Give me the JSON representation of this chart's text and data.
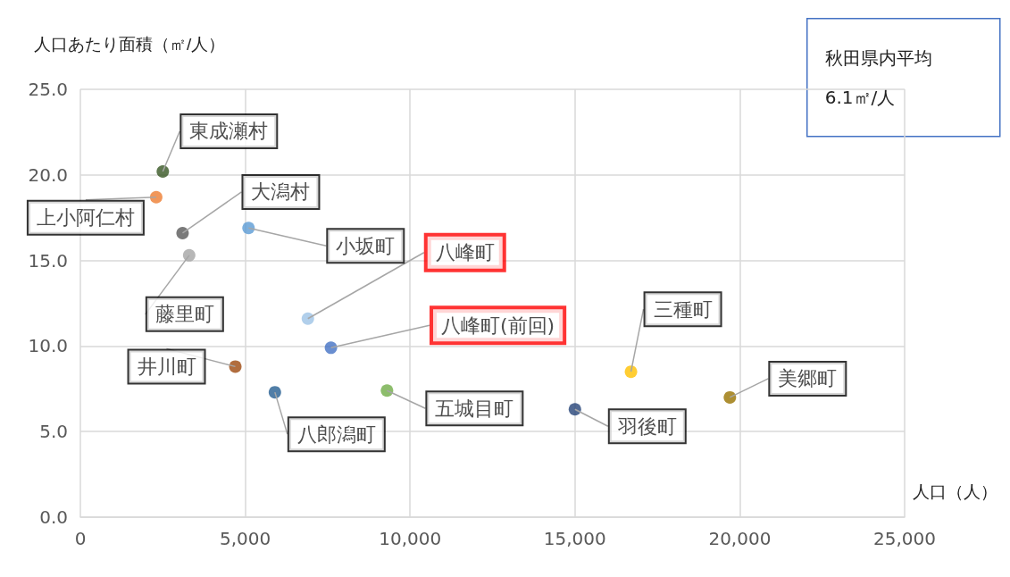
{
  "chart_data": {
    "type": "scatter",
    "ylabel": "人口あたり面積（㎡/人）",
    "xlabel": "人口（人）",
    "x": [
      2500,
      2300,
      3100,
      3300,
      5100,
      6900,
      7600,
      4700,
      5900,
      9300,
      15000,
      16700,
      19700
    ],
    "values": [
      20.2,
      18.7,
      16.6,
      15.3,
      16.9,
      11.6,
      9.9,
      8.8,
      7.3,
      7.4,
      6.3,
      8.5,
      7.0
    ],
    "colors": [
      "#375623",
      "#ed7d31",
      "#595959",
      "#a5a5a5",
      "#5b9bd5",
      "#9dc3e6",
      "#4472c4",
      "#9e480e",
      "#255e91",
      "#70ad47",
      "#264478",
      "#ffc000",
      "#997300"
    ],
    "xlim": [
      0,
      25000
    ],
    "xticks": [
      0,
      {
        "value": 5000,
        "label": "5,000"
      },
      {
        "value": 10000,
        "label": "10,000"
      },
      {
        "value": 15000,
        "label": "15,000"
      },
      {
        "value": 20000,
        "label": "20,000"
      },
      {
        "value": 25000,
        "label": "25,000"
      }
    ],
    "ylim": [
      0,
      25
    ],
    "yticks": [
      {
        "value": 0,
        "label": "0.0"
      },
      {
        "value": 5,
        "label": "5.0"
      },
      {
        "value": 10,
        "label": "10.0"
      },
      {
        "value": 15,
        "label": "15.0"
      },
      {
        "value": 20,
        "label": "20.0"
      },
      {
        "value": 25,
        "label": "25.0"
      }
    ],
    "grid": true,
    "marker": "circle",
    "annotations": [
      {
        "text": "東成瀬村",
        "x": 2500,
        "y": 20.2
      },
      {
        "text": "上小阿仁村",
        "x": 2300,
        "y": 18.7
      },
      {
        "text": "大潟村",
        "x": 3100,
        "y": 16.6
      },
      {
        "text": "藤里町",
        "x": 3300,
        "y": 15.3
      },
      {
        "text": "小坂町",
        "x": 5100,
        "y": 16.9
      },
      {
        "text": "八峰町",
        "x": 6900,
        "y": 11.6
      },
      {
        "text": "八峰町(前回)",
        "x": 7600,
        "y": 9.9
      },
      {
        "text": "井川町",
        "x": 4700,
        "y": 8.8
      },
      {
        "text": "八郎潟町",
        "x": 5900,
        "y": 7.3
      },
      {
        "text": "五城目町",
        "x": 9300,
        "y": 7.4
      },
      {
        "text": "羽後町",
        "x": 15000,
        "y": 6.3
      },
      {
        "text": "三種町",
        "x": 16700,
        "y": 8.5
      },
      {
        "text": "美郷町",
        "x": 19700,
        "y": 7.0
      },
      "秋田県内平均\n6.1㎡/人"
    ]
  }
}
